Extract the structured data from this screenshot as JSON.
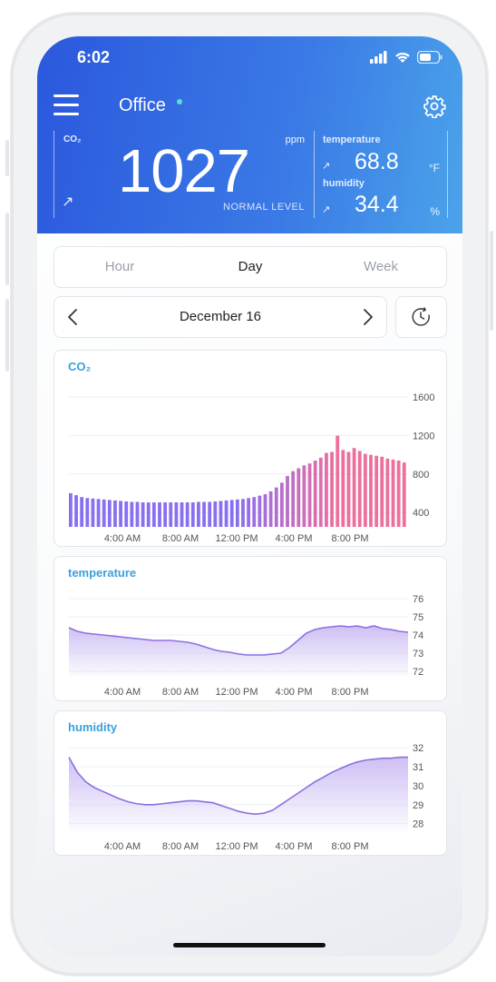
{
  "status": {
    "time": "6:02"
  },
  "header": {
    "location": "Office",
    "co2_label": "CO₂",
    "co2_unit": "ppm",
    "co2_value": "1027",
    "co2_level": "NORMAL LEVEL",
    "temperature_label": "temperature",
    "temperature_value": "68.8",
    "temperature_unit": "°F",
    "humidity_label": "humidity",
    "humidity_value": "34.4",
    "humidity_unit": "%"
  },
  "tabs": [
    {
      "label": "Hour",
      "active": false
    },
    {
      "label": "Day",
      "active": true
    },
    {
      "label": "Week",
      "active": false
    }
  ],
  "date_nav": {
    "date": "December 16"
  },
  "colors": {
    "header_start": "#2b58dd",
    "header_end": "#4ba3ea",
    "accent": "#3ba0dc",
    "bar_start": "#8a6ff0",
    "bar_end": "#ec6f9e",
    "area_line": "#8d6fe0",
    "area_fill": "#c9b8f3"
  },
  "icons": [
    "signal-icon",
    "wifi-icon",
    "battery-icon",
    "menu-icon",
    "gear-icon",
    "chevron-left-icon",
    "chevron-right-icon",
    "history-icon"
  ],
  "chart_data": [
    {
      "type": "bar",
      "title": "CO₂",
      "x_tick_labels": [
        "4:00 AM",
        "8:00 AM",
        "12:00 PM",
        "4:00 PM",
        "8:00 PM"
      ],
      "y_tick_labels": [
        "1600",
        "1200",
        "800",
        "400"
      ],
      "ylim": [
        250,
        1800
      ],
      "values": [
        600,
        580,
        560,
        550,
        545,
        540,
        535,
        530,
        525,
        520,
        515,
        510,
        510,
        505,
        505,
        505,
        505,
        505,
        505,
        505,
        505,
        505,
        505,
        510,
        510,
        510,
        515,
        520,
        525,
        530,
        535,
        540,
        550,
        560,
        575,
        590,
        620,
        660,
        710,
        780,
        830,
        860,
        890,
        910,
        940,
        970,
        1020,
        1030,
        1200,
        1050,
        1030,
        1070,
        1040,
        1010,
        1000,
        990,
        980,
        960,
        950,
        940,
        920
      ]
    },
    {
      "type": "area",
      "title": "temperature",
      "x_tick_labels": [
        "4:00 AM",
        "8:00 AM",
        "12:00 PM",
        "4:00 PM",
        "8:00 PM"
      ],
      "y_tick_labels": [
        "76",
        "75",
        "74",
        "73",
        "72"
      ],
      "ylim": [
        71.7,
        76.5
      ],
      "values": [
        74.4,
        74.2,
        74.1,
        74.05,
        74.0,
        73.95,
        73.9,
        73.85,
        73.8,
        73.75,
        73.7,
        73.7,
        73.7,
        73.65,
        73.6,
        73.5,
        73.35,
        73.2,
        73.1,
        73.05,
        72.95,
        72.9,
        72.9,
        72.9,
        72.95,
        73.0,
        73.3,
        73.7,
        74.1,
        74.3,
        74.4,
        74.45,
        74.5,
        74.45,
        74.5,
        74.4,
        74.5,
        74.35,
        74.3,
        74.2,
        74.15
      ]
    },
    {
      "type": "area",
      "title": "humidity",
      "x_tick_labels": [
        "4:00 AM",
        "8:00 AM",
        "12:00 PM",
        "4:00 PM",
        "8:00 PM"
      ],
      "y_tick_labels": [
        "32",
        "31",
        "30",
        "29",
        "28"
      ],
      "ylim": [
        27.6,
        32.2
      ],
      "values": [
        31.5,
        30.7,
        30.2,
        29.9,
        29.7,
        29.5,
        29.3,
        29.15,
        29.05,
        29.0,
        29.0,
        29.05,
        29.1,
        29.15,
        29.2,
        29.2,
        29.15,
        29.1,
        28.95,
        28.8,
        28.65,
        28.55,
        28.5,
        28.55,
        28.7,
        29.0,
        29.3,
        29.6,
        29.9,
        30.2,
        30.45,
        30.7,
        30.9,
        31.1,
        31.25,
        31.35,
        31.4,
        31.45,
        31.45,
        31.5,
        31.5
      ]
    }
  ]
}
